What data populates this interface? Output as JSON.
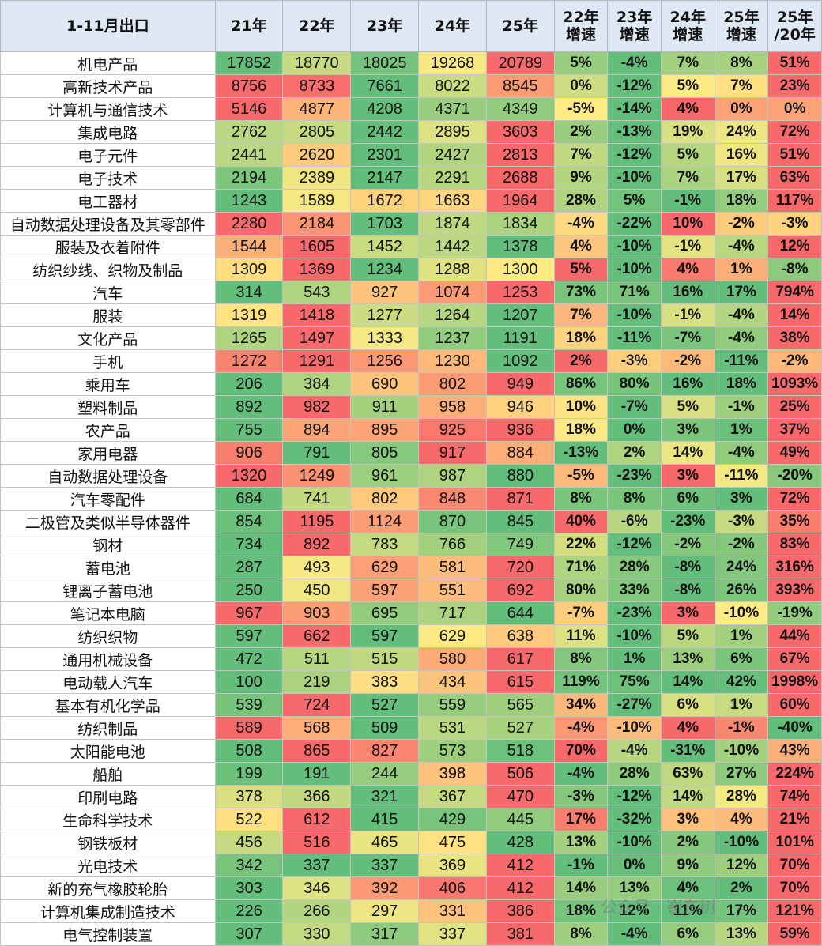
{
  "header": [
    "1-11月出口",
    "21年",
    "22年",
    "23年",
    "24年",
    "25年",
    "22年\n增速",
    "23年\n增速",
    "24年\n增速",
    "25年\n增速",
    "25年\n/20年"
  ],
  "rows": [
    {
      "name": "机电产品",
      "values": [
        "17852",
        "18770",
        "18025",
        "19268",
        "20789"
      ],
      "growth": [
        "5%",
        "-4%",
        "7%",
        "8%",
        "51%"
      ]
    },
    {
      "name": "高新技术产品",
      "values": [
        "8756",
        "8733",
        "7661",
        "8022",
        "8545"
      ],
      "growth": [
        "0%",
        "-12%",
        "5%",
        "7%",
        "23%"
      ]
    },
    {
      "name": "计算机与通信技术",
      "values": [
        "5146",
        "4877",
        "4208",
        "4371",
        "4349"
      ],
      "growth": [
        "-5%",
        "-14%",
        "4%",
        "0%",
        "0%"
      ]
    },
    {
      "name": "集成电路",
      "values": [
        "2762",
        "2805",
        "2442",
        "2895",
        "3603"
      ],
      "growth": [
        "2%",
        "-13%",
        "19%",
        "24%",
        "72%"
      ]
    },
    {
      "name": "电子元件",
      "values": [
        "2441",
        "2620",
        "2301",
        "2427",
        "2813"
      ],
      "growth": [
        "7%",
        "-12%",
        "5%",
        "16%",
        "51%"
      ]
    },
    {
      "name": "电子技术",
      "values": [
        "2194",
        "2389",
        "2147",
        "2291",
        "2688"
      ],
      "growth": [
        "9%",
        "-10%",
        "7%",
        "17%",
        "63%"
      ]
    },
    {
      "name": "电工器材",
      "values": [
        "1243",
        "1589",
        "1672",
        "1663",
        "1964"
      ],
      "growth": [
        "28%",
        "5%",
        "-1%",
        "18%",
        "117%"
      ]
    },
    {
      "name": "自动数据处理设备及其零部件",
      "values": [
        "2280",
        "2184",
        "1703",
        "1874",
        "1834"
      ],
      "growth": [
        "-4%",
        "-22%",
        "10%",
        "-2%",
        "-3%"
      ]
    },
    {
      "name": "服装及衣着附件",
      "values": [
        "1544",
        "1605",
        "1452",
        "1442",
        "1378"
      ],
      "growth": [
        "4%",
        "-10%",
        "-1%",
        "-4%",
        "12%"
      ]
    },
    {
      "name": "纺织纱线、织物及制品",
      "values": [
        "1309",
        "1369",
        "1234",
        "1288",
        "1300"
      ],
      "growth": [
        "5%",
        "-10%",
        "4%",
        "1%",
        "-8%"
      ]
    },
    {
      "name": "汽车",
      "values": [
        "314",
        "543",
        "927",
        "1074",
        "1253"
      ],
      "growth": [
        "73%",
        "71%",
        "16%",
        "17%",
        "794%"
      ]
    },
    {
      "name": "服装",
      "values": [
        "1319",
        "1418",
        "1277",
        "1264",
        "1207"
      ],
      "growth": [
        "7%",
        "-10%",
        "-1%",
        "-4%",
        "14%"
      ]
    },
    {
      "name": "文化产品",
      "values": [
        "1265",
        "1497",
        "1333",
        "1237",
        "1191"
      ],
      "growth": [
        "18%",
        "-11%",
        "-7%",
        "-4%",
        "38%"
      ]
    },
    {
      "name": "手机",
      "values": [
        "1272",
        "1291",
        "1256",
        "1230",
        "1092"
      ],
      "growth": [
        "2%",
        "-3%",
        "-2%",
        "-11%",
        "-2%"
      ]
    },
    {
      "name": "乘用车",
      "values": [
        "206",
        "384",
        "690",
        "802",
        "949"
      ],
      "growth": [
        "86%",
        "80%",
        "16%",
        "18%",
        "1093%"
      ]
    },
    {
      "name": "塑料制品",
      "values": [
        "892",
        "982",
        "911",
        "958",
        "946"
      ],
      "growth": [
        "10%",
        "-7%",
        "5%",
        "-1%",
        "25%"
      ]
    },
    {
      "name": "农产品",
      "values": [
        "755",
        "894",
        "895",
        "925",
        "936"
      ],
      "growth": [
        "18%",
        "0%",
        "3%",
        "1%",
        "37%"
      ]
    },
    {
      "name": "家用电器",
      "values": [
        "906",
        "791",
        "805",
        "917",
        "884"
      ],
      "growth": [
        "-13%",
        "2%",
        "14%",
        "-4%",
        "49%"
      ]
    },
    {
      "name": "自动数据处理设备",
      "values": [
        "1320",
        "1249",
        "961",
        "987",
        "880"
      ],
      "growth": [
        "-5%",
        "-23%",
        "3%",
        "-11%",
        "-20%"
      ]
    },
    {
      "name": "汽车零配件",
      "values": [
        "684",
        "741",
        "802",
        "848",
        "871"
      ],
      "growth": [
        "8%",
        "8%",
        "6%",
        "3%",
        "72%"
      ]
    },
    {
      "name": "二极管及类似半导体器件",
      "values": [
        "854",
        "1195",
        "1124",
        "870",
        "845"
      ],
      "growth": [
        "40%",
        "-6%",
        "-23%",
        "-3%",
        "35%"
      ]
    },
    {
      "name": "钢材",
      "values": [
        "734",
        "892",
        "783",
        "766",
        "749"
      ],
      "growth": [
        "22%",
        "-12%",
        "-2%",
        "-2%",
        "83%"
      ]
    },
    {
      "name": "蓄电池",
      "values": [
        "287",
        "493",
        "629",
        "581",
        "720"
      ],
      "growth": [
        "71%",
        "28%",
        "-8%",
        "24%",
        "316%"
      ]
    },
    {
      "name": "锂离子蓄电池",
      "values": [
        "250",
        "450",
        "597",
        "551",
        "692"
      ],
      "growth": [
        "80%",
        "33%",
        "-8%",
        "26%",
        "393%"
      ]
    },
    {
      "name": "笔记本电脑",
      "values": [
        "967",
        "903",
        "695",
        "717",
        "644"
      ],
      "growth": [
        "-7%",
        "-23%",
        "3%",
        "-10%",
        "-19%"
      ]
    },
    {
      "name": "纺织织物",
      "values": [
        "597",
        "662",
        "597",
        "629",
        "638"
      ],
      "growth": [
        "11%",
        "-10%",
        "5%",
        "1%",
        "44%"
      ]
    },
    {
      "name": "通用机械设备",
      "values": [
        "472",
        "511",
        "515",
        "580",
        "617"
      ],
      "growth": [
        "8%",
        "1%",
        "13%",
        "6%",
        "67%"
      ]
    },
    {
      "name": "电动载人汽车",
      "values": [
        "100",
        "219",
        "383",
        "434",
        "615"
      ],
      "growth": [
        "119%",
        "75%",
        "14%",
        "42%",
        "1998%"
      ]
    },
    {
      "name": "基本有机化学品",
      "values": [
        "539",
        "724",
        "527",
        "559",
        "565"
      ],
      "growth": [
        "34%",
        "-27%",
        "6%",
        "1%",
        "60%"
      ]
    },
    {
      "name": "纺织制品",
      "values": [
        "589",
        "568",
        "509",
        "531",
        "527"
      ],
      "growth": [
        "-4%",
        "-10%",
        "4%",
        "-1%",
        "-40%"
      ]
    },
    {
      "name": "太阳能电池",
      "values": [
        "508",
        "865",
        "827",
        "573",
        "518"
      ],
      "growth": [
        "70%",
        "-4%",
        "-31%",
        "-10%",
        "43%"
      ]
    },
    {
      "name": "船舶",
      "values": [
        "199",
        "191",
        "244",
        "398",
        "506"
      ],
      "growth": [
        "-4%",
        "28%",
        "63%",
        "27%",
        "224%"
      ]
    },
    {
      "name": "印刷电路",
      "values": [
        "378",
        "366",
        "321",
        "367",
        "470"
      ],
      "growth": [
        "-3%",
        "-12%",
        "14%",
        "28%",
        "74%"
      ]
    },
    {
      "name": "生命科学技术",
      "values": [
        "522",
        "612",
        "415",
        "429",
        "445"
      ],
      "growth": [
        "17%",
        "-32%",
        "3%",
        "4%",
        "21%"
      ]
    },
    {
      "name": "钢铁板材",
      "values": [
        "456",
        "516",
        "465",
        "475",
        "428"
      ],
      "growth": [
        "13%",
        "-10%",
        "2%",
        "-10%",
        "101%"
      ]
    },
    {
      "name": "光电技术",
      "values": [
        "342",
        "337",
        "337",
        "369",
        "412"
      ],
      "growth": [
        "-1%",
        "0%",
        "9%",
        "12%",
        "70%"
      ]
    },
    {
      "name": "新的充气橡胶轮胎",
      "values": [
        "303",
        "346",
        "392",
        "406",
        "412"
      ],
      "growth": [
        "14%",
        "13%",
        "4%",
        "2%",
        "70%"
      ]
    },
    {
      "name": "计算机集成制造技术",
      "values": [
        "226",
        "266",
        "297",
        "331",
        "386"
      ],
      "growth": [
        "18%",
        "12%",
        "11%",
        "17%",
        "121%"
      ]
    },
    {
      "name": "电气控制装置",
      "values": [
        "307",
        "330",
        "317",
        "337",
        "381"
      ],
      "growth": [
        "8%",
        "-4%",
        "6%",
        "13%",
        "59%"
      ]
    }
  ],
  "watermark": "公众号 · 崔东树",
  "colors": {
    "high": "#f8696b",
    "mid": "#ffeb84",
    "low": "#63be7b",
    "header_bg": "#dfe9f5"
  }
}
